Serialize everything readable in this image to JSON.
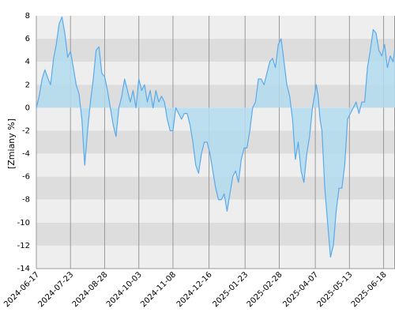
{
  "chart_data": {
    "type": "area",
    "ylabel": "[Zmiany %]",
    "ylim": [
      -14,
      8
    ],
    "y_ticks": [
      8,
      6,
      4,
      2,
      0,
      -2,
      -4,
      -6,
      -8,
      -10,
      -12,
      -14
    ],
    "x_range": [
      "2024-06-17",
      "2025-06-30"
    ],
    "x_ticks": [
      "2024-06-17",
      "2024-07-23",
      "2024-08-28",
      "2024-10-03",
      "2024-11-08",
      "2024-12-16",
      "2025-01-23",
      "2025-02-28",
      "2025-04-07",
      "2025-05-13",
      "2025-06-18"
    ],
    "grid": true,
    "band_colors": [
      "#eeeeee",
      "#dddddd"
    ],
    "line_color": "#5aaaea",
    "fill_color": "#b3dcef",
    "series": [
      {
        "x": [
          "2024-06-17",
          "2024-06-20",
          "2024-06-23",
          "2024-06-26",
          "2024-06-29",
          "2024-07-02",
          "2024-07-05",
          "2024-07-08",
          "2024-07-11",
          "2024-07-14",
          "2024-07-17",
          "2024-07-20",
          "2024-07-23",
          "2024-07-26",
          "2024-07-29",
          "2024-08-01",
          "2024-08-04",
          "2024-08-07",
          "2024-08-10",
          "2024-08-13",
          "2024-08-16",
          "2024-08-19",
          "2024-08-22",
          "2024-08-25",
          "2024-08-28",
          "2024-08-31",
          "2024-09-03",
          "2024-09-06",
          "2024-09-09",
          "2024-09-12",
          "2024-09-15",
          "2024-09-18",
          "2024-09-21",
          "2024-09-24",
          "2024-09-27",
          "2024-09-30",
          "2024-10-03",
          "2024-10-06",
          "2024-10-09",
          "2024-10-12",
          "2024-10-15",
          "2024-10-18",
          "2024-10-21",
          "2024-10-24",
          "2024-10-27",
          "2024-10-30",
          "2024-11-02",
          "2024-11-05",
          "2024-11-08",
          "2024-11-11",
          "2024-11-14",
          "2024-11-17",
          "2024-11-20",
          "2024-11-23",
          "2024-11-26",
          "2024-11-29",
          "2024-12-02",
          "2024-12-05",
          "2024-12-08",
          "2024-12-11",
          "2024-12-14",
          "2024-12-17",
          "2024-12-20",
          "2024-12-23",
          "2024-12-26",
          "2024-12-29",
          "2025-01-01",
          "2025-01-04",
          "2025-01-07",
          "2025-01-10",
          "2025-01-13",
          "2025-01-16",
          "2025-01-19",
          "2025-01-22",
          "2025-01-25",
          "2025-01-28",
          "2025-01-31",
          "2025-02-03",
          "2025-02-06",
          "2025-02-09",
          "2025-02-12",
          "2025-02-15",
          "2025-02-18",
          "2025-02-21",
          "2025-02-24",
          "2025-02-27",
          "2025-03-02",
          "2025-03-05",
          "2025-03-08",
          "2025-03-11",
          "2025-03-14",
          "2025-03-17",
          "2025-03-20",
          "2025-03-23",
          "2025-03-26",
          "2025-03-29",
          "2025-04-01",
          "2025-04-04",
          "2025-04-06",
          "2025-04-08",
          "2025-04-10",
          "2025-04-12",
          "2025-04-14",
          "2025-04-17",
          "2025-04-20",
          "2025-04-23",
          "2025-04-26",
          "2025-04-29",
          "2025-05-02",
          "2025-05-05",
          "2025-05-08",
          "2025-05-11",
          "2025-05-14",
          "2025-05-17",
          "2025-05-20",
          "2025-05-23",
          "2025-05-26",
          "2025-05-29",
          "2025-06-01",
          "2025-06-04",
          "2025-06-07",
          "2025-06-10",
          "2025-06-13",
          "2025-06-16",
          "2025-06-19",
          "2025-06-22",
          "2025-06-25",
          "2025-06-28",
          "2025-06-30"
        ],
        "y": [
          0.0,
          1.0,
          2.5,
          3.3,
          2.6,
          2.0,
          4.2,
          5.5,
          7.3,
          7.9,
          6.5,
          4.4,
          4.9,
          3.5,
          2.0,
          1.2,
          -1.0,
          -5.0,
          -2.0,
          0.5,
          2.5,
          5.0,
          5.3,
          3.0,
          2.7,
          1.5,
          0.0,
          -1.5,
          -2.5,
          0.0,
          1.0,
          2.5,
          1.5,
          0.5,
          1.5,
          0.0,
          2.5,
          1.5,
          2.0,
          0.5,
          1.5,
          0.0,
          1.5,
          0.5,
          1.0,
          0.5,
          -1.0,
          -2.0,
          -2.0,
          0.0,
          -0.5,
          -1.0,
          -0.5,
          -0.5,
          -1.5,
          -3.0,
          -5.0,
          -5.7,
          -4.0,
          -3.0,
          -3.0,
          -4.0,
          -5.5,
          -7.0,
          -8.0,
          -8.0,
          -7.5,
          -9.0,
          -7.5,
          -6.0,
          -5.5,
          -6.5,
          -4.5,
          -3.5,
          -3.5,
          -2.0,
          0.0,
          0.5,
          2.5,
          2.5,
          2.0,
          3.0,
          4.0,
          4.3,
          3.5,
          5.5,
          6.0,
          4.0,
          2.0,
          1.0,
          -1.0,
          -4.5,
          -3.0,
          -5.5,
          -6.5,
          -4.0,
          -2.5,
          0.0,
          1.0,
          2.0,
          1.0,
          -1.0,
          -2.0,
          -7.0,
          -10.0,
          -13.0,
          -12.0,
          -9.0,
          -7.0,
          -7.0,
          -5.0,
          -1.0,
          -0.5,
          0.0,
          0.5,
          -0.5,
          0.5,
          0.5,
          3.5,
          5.0,
          6.8,
          6.5,
          5.0,
          4.5,
          5.5,
          3.5,
          4.5,
          4.0,
          5.2
        ]
      }
    ]
  }
}
